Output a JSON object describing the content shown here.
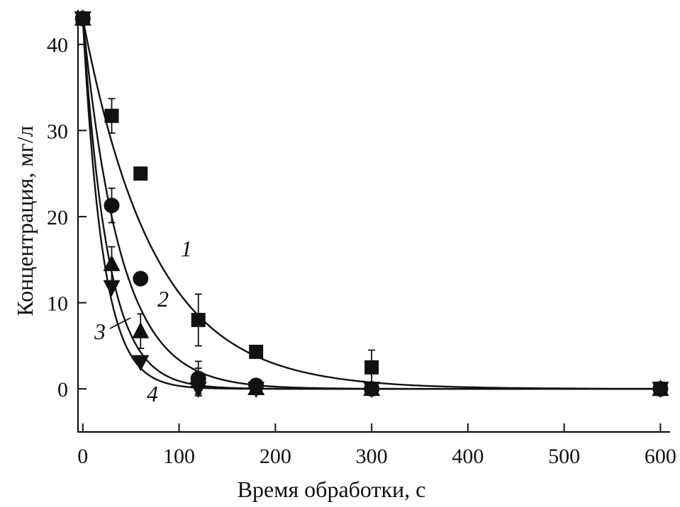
{
  "chart_data": {
    "type": "scatter",
    "xlabel": "Время обработки, с",
    "ylabel": "Концентрация, мг/л",
    "xlim": [
      -5,
      610
    ],
    "ylim": [
      -5,
      44
    ],
    "xticks": [
      0,
      100,
      200,
      300,
      400,
      500,
      600
    ],
    "yticks": [
      0,
      10,
      20,
      30,
      40
    ],
    "grid": false,
    "series": [
      {
        "name": "1",
        "marker": "square",
        "x": [
          0,
          30,
          60,
          120,
          180,
          300,
          600
        ],
        "y": [
          43,
          31.7,
          25,
          8,
          4.3,
          2.5,
          0
        ],
        "err": [
          0,
          2,
          0,
          3,
          0,
          2,
          0
        ],
        "fit_k": 0.0135
      },
      {
        "name": "2",
        "marker": "circle",
        "x": [
          0,
          30,
          60,
          120,
          180,
          300,
          600
        ],
        "y": [
          43,
          21.3,
          12.8,
          1.2,
          0.4,
          0,
          0
        ],
        "err": [
          0,
          2,
          0,
          2,
          0,
          0,
          0
        ],
        "fit_k": 0.0255
      },
      {
        "name": "3",
        "marker": "triangle-up",
        "x": [
          0,
          30,
          60,
          120,
          180,
          300,
          600
        ],
        "y": [
          43,
          14.5,
          6.7,
          0.9,
          0.1,
          0,
          0
        ],
        "err": [
          0,
          2,
          2,
          1.5,
          0,
          0,
          0
        ],
        "fit_k": 0.0385
      },
      {
        "name": "4",
        "marker": "triangle-down",
        "x": [
          0,
          30,
          60,
          120,
          180,
          300,
          600
        ],
        "y": [
          43,
          11.8,
          3.1,
          0,
          0,
          0,
          0
        ],
        "err": [
          0,
          0,
          0,
          0,
          0,
          0,
          0
        ],
        "fit_k": 0.048
      }
    ]
  }
}
